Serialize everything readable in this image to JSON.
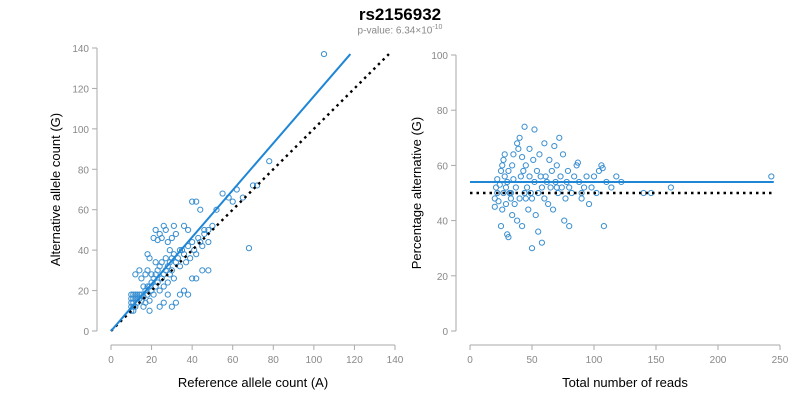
{
  "header": {
    "title": "rs2156932",
    "pvalue_prefix": "p-value: 6.34×10",
    "pvalue_exponent": "-10"
  },
  "colors": {
    "points": "#3a8fd0",
    "fit_line": "#1f86d6",
    "reference_line": "#000000",
    "axis": "#aaaaaa",
    "tick_text": "#888888"
  },
  "chart_data": [
    {
      "type": "scatter",
      "xlabel": "Reference allele count (A)",
      "ylabel": "Alternative allele count (G)",
      "xlim": [
        0,
        140
      ],
      "ylim": [
        0,
        140
      ],
      "xticks": [
        0,
        20,
        40,
        60,
        80,
        100,
        120,
        140
      ],
      "yticks": [
        0,
        20,
        40,
        60,
        80,
        100,
        120,
        140
      ],
      "fit_line": {
        "from": [
          0,
          0
        ],
        "to": [
          118,
          137
        ],
        "style": "solid"
      },
      "reference_line": {
        "from": [
          0,
          0
        ],
        "to": [
          137,
          137
        ],
        "style": "dotted"
      },
      "points": [
        [
          10,
          10
        ],
        [
          10,
          12
        ],
        [
          10,
          14
        ],
        [
          10,
          16
        ],
        [
          10,
          18
        ],
        [
          11,
          10
        ],
        [
          11,
          12
        ],
        [
          11,
          14
        ],
        [
          11,
          16
        ],
        [
          11,
          18
        ],
        [
          12,
          12
        ],
        [
          12,
          16
        ],
        [
          12,
          18
        ],
        [
          13,
          14
        ],
        [
          13,
          16
        ],
        [
          13,
          18
        ],
        [
          14,
          16
        ],
        [
          14,
          18
        ],
        [
          15,
          15
        ],
        [
          15,
          18
        ],
        [
          16,
          12
        ],
        [
          16,
          17
        ],
        [
          17,
          20
        ],
        [
          17,
          14
        ],
        [
          18,
          18
        ],
        [
          18,
          22
        ],
        [
          19,
          15
        ],
        [
          19,
          22
        ],
        [
          20,
          20
        ],
        [
          20,
          24
        ],
        [
          21,
          26
        ],
        [
          21,
          18
        ],
        [
          22,
          22
        ],
        [
          22,
          28
        ],
        [
          23,
          30
        ],
        [
          23,
          24
        ],
        [
          24,
          32
        ],
        [
          24,
          20
        ],
        [
          25,
          26
        ],
        [
          25,
          34
        ],
        [
          26,
          28
        ],
        [
          26,
          22
        ],
        [
          27,
          30
        ],
        [
          27,
          36
        ],
        [
          28,
          32
        ],
        [
          28,
          24
        ],
        [
          29,
          34
        ],
        [
          29,
          28
        ],
        [
          30,
          36
        ],
        [
          30,
          30
        ],
        [
          31,
          26
        ],
        [
          31,
          38
        ],
        [
          32,
          34
        ],
        [
          33,
          36
        ],
        [
          34,
          32
        ],
        [
          35,
          40
        ],
        [
          36,
          38
        ],
        [
          37,
          34
        ],
        [
          38,
          42
        ],
        [
          39,
          36
        ],
        [
          40,
          44
        ],
        [
          41,
          40
        ],
        [
          42,
          38
        ],
        [
          43,
          46
        ],
        [
          44,
          44
        ],
        [
          45,
          42
        ],
        [
          46,
          48
        ],
        [
          48,
          50
        ],
        [
          50,
          52
        ],
        [
          52,
          60
        ],
        [
          55,
          68
        ],
        [
          58,
          66
        ],
        [
          60,
          64
        ],
        [
          62,
          70
        ],
        [
          65,
          66
        ],
        [
          68,
          41
        ],
        [
          70,
          72
        ],
        [
          72,
          72
        ],
        [
          78,
          84
        ],
        [
          105,
          137
        ],
        [
          12,
          28
        ],
        [
          14,
          30
        ],
        [
          15,
          26
        ],
        [
          16,
          22
        ],
        [
          18,
          30
        ],
        [
          18,
          38
        ],
        [
          19,
          10
        ],
        [
          20,
          28
        ],
        [
          21,
          46
        ],
        [
          22,
          50
        ],
        [
          23,
          45
        ],
        [
          24,
          48
        ],
        [
          25,
          46
        ],
        [
          26,
          52
        ],
        [
          27,
          50
        ],
        [
          28,
          44
        ],
        [
          29,
          40
        ],
        [
          30,
          46
        ],
        [
          31,
          52
        ],
        [
          32,
          48
        ],
        [
          34,
          40
        ],
        [
          36,
          52
        ],
        [
          38,
          50
        ],
        [
          40,
          64
        ],
        [
          42,
          64
        ],
        [
          44,
          60
        ],
        [
          46,
          50
        ],
        [
          48,
          44
        ],
        [
          30,
          12
        ],
        [
          32,
          14
        ],
        [
          34,
          18
        ],
        [
          36,
          20
        ],
        [
          38,
          18
        ],
        [
          40,
          26
        ],
        [
          42,
          26
        ],
        [
          45,
          30
        ],
        [
          48,
          30
        ],
        [
          24,
          12
        ],
        [
          26,
          14
        ],
        [
          28,
          18
        ],
        [
          17,
          28
        ],
        [
          19,
          36
        ],
        [
          22,
          34
        ]
      ]
    },
    {
      "type": "scatter",
      "xlabel": "Total number of reads",
      "ylabel": "Percentage alternative (G)",
      "xlim": [
        0,
        250
      ],
      "ylim": [
        0,
        100
      ],
      "xticks": [
        0,
        50,
        100,
        150,
        200,
        250
      ],
      "yticks": [
        0,
        20,
        40,
        60,
        80,
        100
      ],
      "fit_line": {
        "from": [
          0,
          54
        ],
        "to": [
          245,
          54
        ],
        "style": "solid"
      },
      "reference_line": {
        "from": [
          0,
          50
        ],
        "to": [
          245,
          50
        ],
        "style": "dotted"
      },
      "points": [
        [
          20,
          48
        ],
        [
          20,
          45
        ],
        [
          21,
          52
        ],
        [
          22,
          50
        ],
        [
          22,
          55
        ],
        [
          23,
          47
        ],
        [
          24,
          53
        ],
        [
          25,
          58
        ],
        [
          25,
          38
        ],
        [
          26,
          60
        ],
        [
          26,
          44
        ],
        [
          27,
          62
        ],
        [
          27,
          50
        ],
        [
          28,
          64
        ],
        [
          28,
          56
        ],
        [
          29,
          46
        ],
        [
          29,
          52
        ],
        [
          30,
          35
        ],
        [
          30,
          54
        ],
        [
          31,
          34
        ],
        [
          31,
          58
        ],
        [
          32,
          50
        ],
        [
          33,
          48
        ],
        [
          34,
          60
        ],
        [
          34,
          42
        ],
        [
          35,
          55
        ],
        [
          36,
          46
        ],
        [
          37,
          52
        ],
        [
          38,
          68
        ],
        [
          38,
          40
        ],
        [
          39,
          66
        ],
        [
          40,
          70
        ],
        [
          40,
          48
        ],
        [
          41,
          56
        ],
        [
          42,
          63
        ],
        [
          42,
          38
        ],
        [
          43,
          58
        ],
        [
          44,
          74
        ],
        [
          44,
          50
        ],
        [
          45,
          60
        ],
        [
          46,
          52
        ],
        [
          47,
          44
        ],
        [
          48,
          66
        ],
        [
          48,
          56
        ],
        [
          49,
          50
        ],
        [
          50,
          48
        ],
        [
          50,
          30
        ],
        [
          51,
          62
        ],
        [
          52,
          73
        ],
        [
          52,
          54
        ],
        [
          53,
          42
        ],
        [
          54,
          58
        ],
        [
          55,
          50
        ],
        [
          55,
          36
        ],
        [
          56,
          64
        ],
        [
          57,
          56
        ],
        [
          58,
          32
        ],
        [
          58,
          52
        ],
        [
          60,
          68
        ],
        [
          60,
          48
        ],
        [
          61,
          56
        ],
        [
          62,
          54
        ],
        [
          63,
          46
        ],
        [
          64,
          62
        ],
        [
          65,
          52
        ],
        [
          66,
          58
        ],
        [
          67,
          44
        ],
        [
          68,
          67
        ],
        [
          69,
          54
        ],
        [
          70,
          60
        ],
        [
          71,
          50
        ],
        [
          72,
          70
        ],
        [
          73,
          56
        ],
        [
          74,
          52
        ],
        [
          75,
          64
        ],
        [
          76,
          40
        ],
        [
          77,
          48
        ],
        [
          78,
          54
        ],
        [
          79,
          58
        ],
        [
          80,
          52
        ],
        [
          82,
          50
        ],
        [
          84,
          56
        ],
        [
          86,
          60
        ],
        [
          87,
          61
        ],
        [
          88,
          54
        ],
        [
          90,
          48
        ],
        [
          92,
          52
        ],
        [
          94,
          56
        ],
        [
          96,
          46
        ],
        [
          98,
          52
        ],
        [
          100,
          56
        ],
        [
          102,
          50
        ],
        [
          104,
          58
        ],
        [
          106,
          60
        ],
        [
          107,
          59
        ],
        [
          108,
          38
        ],
        [
          110,
          54
        ],
        [
          114,
          52
        ],
        [
          118,
          56
        ],
        [
          122,
          54
        ],
        [
          140,
          50
        ],
        [
          146,
          50
        ],
        [
          162,
          52
        ],
        [
          243,
          56
        ],
        [
          70,
          52
        ],
        [
          80,
          38
        ],
        [
          90,
          50
        ],
        [
          45,
          48
        ],
        [
          35,
          64
        ],
        [
          33,
          50
        ]
      ]
    }
  ]
}
